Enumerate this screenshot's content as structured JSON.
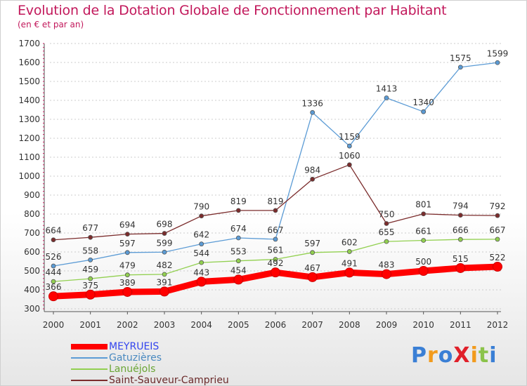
{
  "header": {
    "title": "Evolution de la Dotation Globale de Fonctionnement par Habitant",
    "subtitle": "(en € et par an)"
  },
  "logo": {
    "text": "ProXiti",
    "letter_colors": [
      "#3a7fd5",
      "#f29b1d",
      "#3a7fd5",
      "#e0202a",
      "#f29b1d",
      "#8bc34a",
      "#3a7fd5"
    ]
  },
  "colors": {
    "title": "#c2185b",
    "grid": "#cccccc",
    "axis": "#555555"
  },
  "chart_data": {
    "type": "line",
    "title": "Evolution de la Dotation Globale de Fonctionnement par Habitant",
    "subtitle": "(en € et par an)",
    "xlabel": "",
    "ylabel": "",
    "x": [
      "2000",
      "2001",
      "2002",
      "2003",
      "2004",
      "2005",
      "2006",
      "2007",
      "2008",
      "2009",
      "2010",
      "2011",
      "2012"
    ],
    "ylim": [
      300,
      1700
    ],
    "yticks": [
      300,
      400,
      500,
      600,
      700,
      800,
      900,
      1000,
      1100,
      1200,
      1300,
      1400,
      1500,
      1600,
      1700
    ],
    "grid": "horizontal dashed",
    "legend_position": "bottom-left",
    "series": [
      {
        "name": "MEYRUEIS",
        "color": "#ff0000",
        "emphasis": true,
        "values": [
          366,
          375,
          389,
          391,
          443,
          454,
          492,
          467,
          491,
          483,
          500,
          515,
          522
        ]
      },
      {
        "name": "Gatuzières",
        "color": "#5b9bd5",
        "values": [
          526,
          558,
          597,
          599,
          642,
          674,
          667,
          1336,
          1159,
          1413,
          1340,
          1575,
          1599
        ]
      },
      {
        "name": "Lanuéjols",
        "color": "#92d050",
        "values": [
          444,
          459,
          479,
          482,
          544,
          553,
          561,
          597,
          602,
          655,
          661,
          666,
          667
        ]
      },
      {
        "name": "Saint-Sauveur-Camprieu",
        "color": "#7b2c2c",
        "values": [
          664,
          677,
          694,
          698,
          790,
          819,
          819,
          984,
          1060,
          750,
          801,
          794,
          792
        ]
      }
    ]
  }
}
